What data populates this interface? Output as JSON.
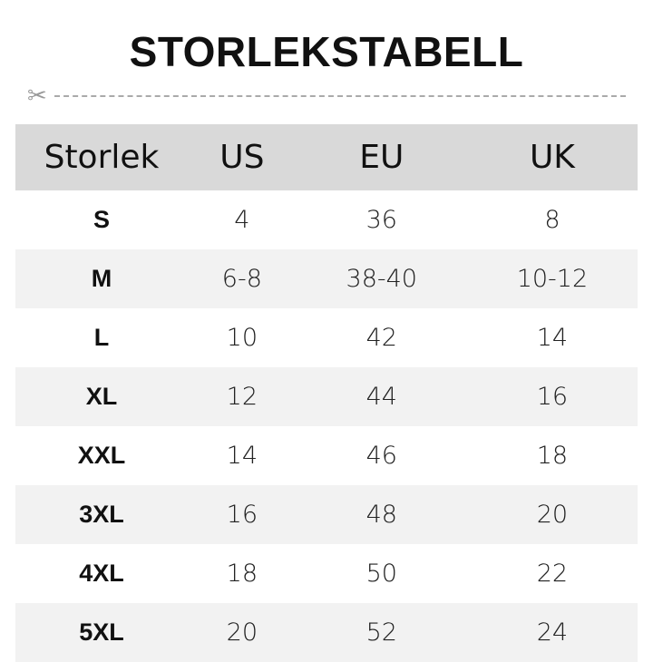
{
  "title": "STORLEKSTABELL",
  "cut_icon": "scissors-icon",
  "colors": {
    "header_bg": "#d9d9d9",
    "stripe_bg": "#f2f2f2"
  },
  "table": {
    "headers": [
      "Storlek",
      "US",
      "EU",
      "UK"
    ],
    "rows": [
      [
        "S",
        "4",
        "36",
        "8"
      ],
      [
        "M",
        "6-8",
        "38-40",
        "10-12"
      ],
      [
        "L",
        "10",
        "42",
        "14"
      ],
      [
        "XL",
        "12",
        "44",
        "16"
      ],
      [
        "XXL",
        "14",
        "46",
        "18"
      ],
      [
        "3XL",
        "16",
        "48",
        "20"
      ],
      [
        "4XL",
        "18",
        "50",
        "22"
      ],
      [
        "5XL",
        "20",
        "52",
        "24"
      ]
    ]
  }
}
